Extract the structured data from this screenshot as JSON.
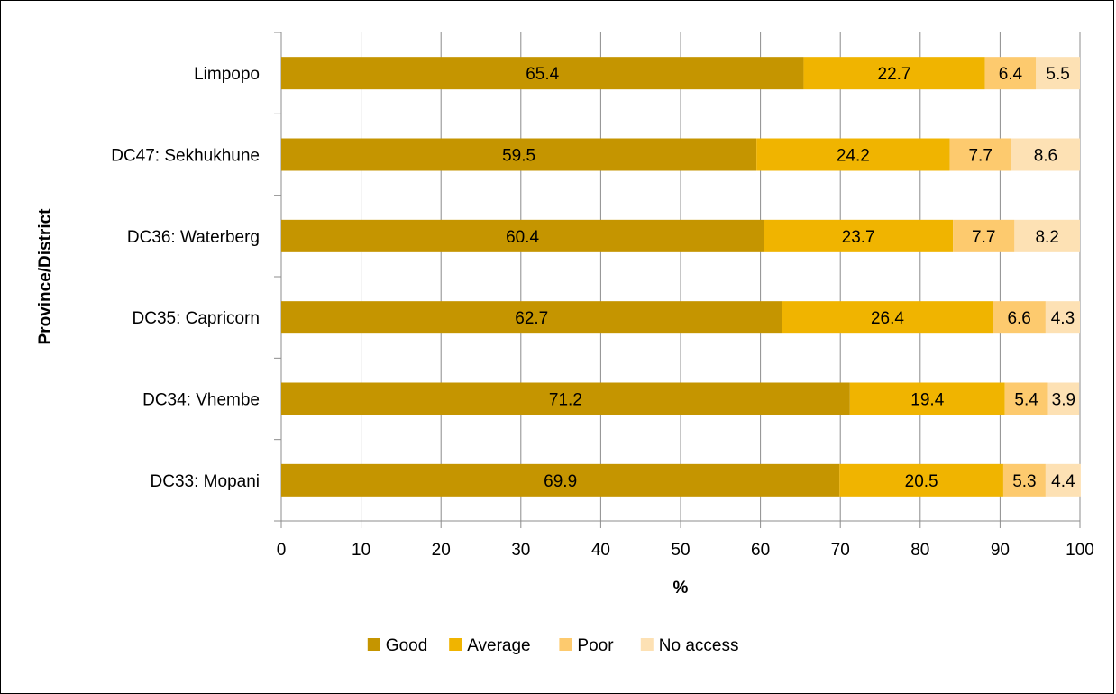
{
  "chart_data": {
    "type": "bar",
    "orientation": "horizontal",
    "stacked": true,
    "categories": [
      "Limpopo",
      "DC47: Sekhukhune",
      "DC36: Waterberg",
      "DC35: Capricorn",
      "DC34: Vhembe",
      "DC33: Mopani"
    ],
    "series": [
      {
        "name": "Good",
        "color": "#c59500",
        "values": [
          65.4,
          59.5,
          60.4,
          62.7,
          71.2,
          69.9
        ]
      },
      {
        "name": "Average",
        "color": "#f0b400",
        "values": [
          22.7,
          24.2,
          23.7,
          26.4,
          19.4,
          20.5
        ]
      },
      {
        "name": "Poor",
        "color": "#fdca6e",
        "values": [
          6.4,
          7.7,
          7.7,
          6.6,
          5.4,
          5.3
        ]
      },
      {
        "name": "No access",
        "color": "#fde1b4",
        "values": [
          5.5,
          8.6,
          8.2,
          4.3,
          3.9,
          4.4
        ]
      }
    ],
    "xlabel": "%",
    "ylabel": "Province/District",
    "xlim": [
      0,
      100
    ],
    "xticks": [
      0,
      10,
      20,
      30,
      40,
      50,
      60,
      70,
      80,
      90,
      100
    ],
    "grid": "vertical",
    "legend_position": "bottom",
    "data_labels": true
  }
}
